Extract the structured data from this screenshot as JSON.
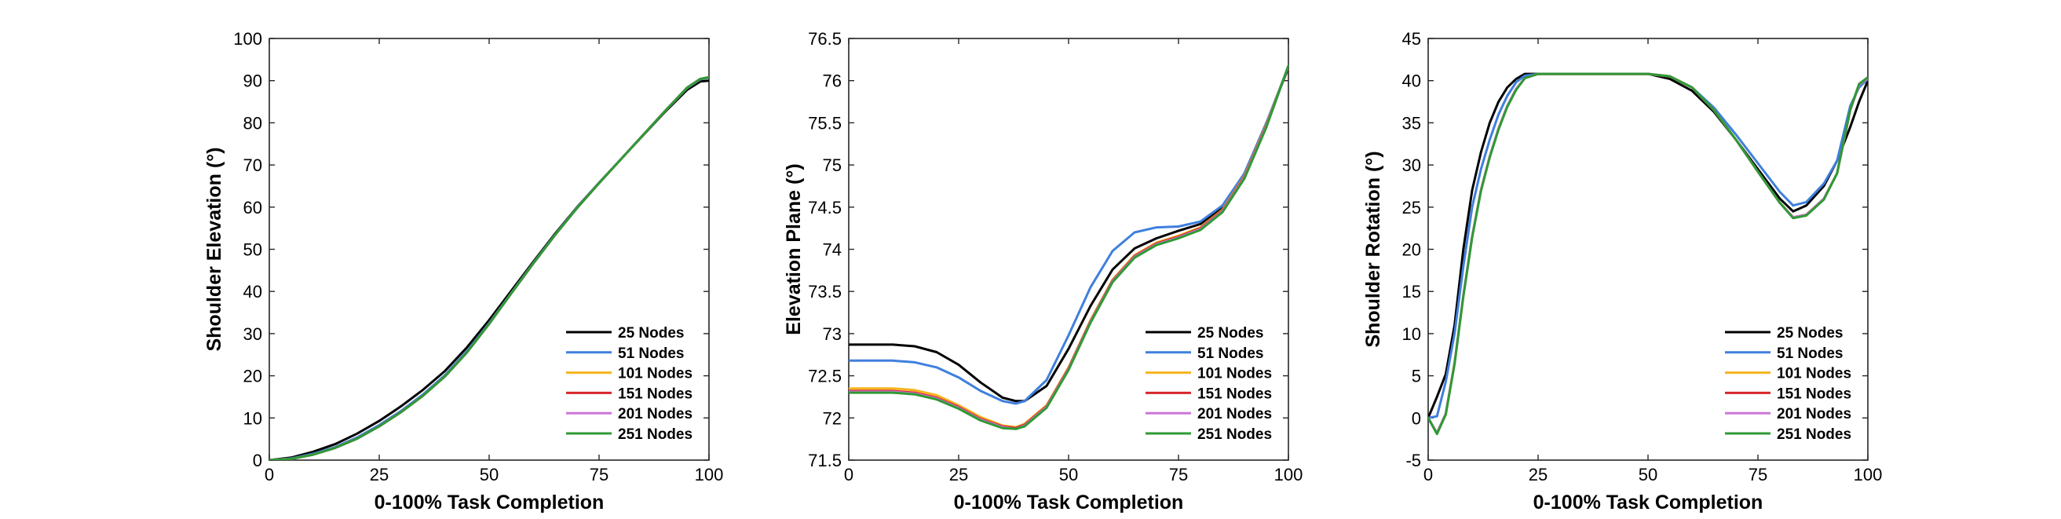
{
  "chart_data": [
    {
      "type": "line",
      "xlabel": "0-100% Task Completion",
      "ylabel": "Shoulder Elevation (°)",
      "xlim": [
        0,
        100
      ],
      "ylim": [
        0,
        100
      ],
      "xticks": [
        0,
        25,
        50,
        75,
        100
      ],
      "yticks": [
        0,
        10,
        20,
        30,
        40,
        50,
        60,
        70,
        80,
        90,
        100
      ],
      "grid": false,
      "legend_position": "bottom-right",
      "x": [
        0,
        5,
        10,
        15,
        20,
        25,
        30,
        35,
        40,
        45,
        50,
        55,
        60,
        65,
        70,
        75,
        80,
        85,
        90,
        95,
        98,
        100
      ],
      "series": [
        {
          "name": "25 Nodes",
          "color": "#000000",
          "values": [
            0,
            0.6,
            2,
            3.8,
            6.3,
            9.3,
            12.8,
            16.7,
            21.2,
            26.8,
            33.2,
            40.1,
            47,
            53.7,
            60,
            65.8,
            71.4,
            77,
            82.6,
            87.8,
            89.8,
            90
          ]
        },
        {
          "name": "51 Nodes",
          "color": "#3f7fdd",
          "values": [
            0,
            0.4,
            1.5,
            3.1,
            5.4,
            8.3,
            11.7,
            15.6,
            20.2,
            25.9,
            32.5,
            39.6,
            46.7,
            53.5,
            59.9,
            65.8,
            71.4,
            77.1,
            82.8,
            88.2,
            90.3,
            90.7
          ]
        },
        {
          "name": "101 Nodes",
          "color": "#f5b31c",
          "values": [
            0,
            0.3,
            1.3,
            2.9,
            5.1,
            8,
            11.4,
            15.3,
            19.9,
            25.6,
            32.3,
            39.5,
            46.6,
            53.4,
            59.8,
            65.7,
            71.4,
            77.1,
            82.8,
            88.3,
            90.4,
            90.8
          ]
        },
        {
          "name": "151 Nodes",
          "color": "#d6262a",
          "values": [
            0,
            0.3,
            1.3,
            2.9,
            5.1,
            8,
            11.4,
            15.3,
            19.9,
            25.6,
            32.3,
            39.5,
            46.6,
            53.4,
            59.8,
            65.7,
            71.4,
            77.1,
            82.8,
            88.3,
            90.4,
            90.8
          ]
        },
        {
          "name": "201 Nodes",
          "color": "#cc77d8",
          "values": [
            0,
            0.3,
            1.3,
            2.9,
            5.1,
            8,
            11.4,
            15.3,
            19.9,
            25.6,
            32.3,
            39.5,
            46.6,
            53.4,
            59.8,
            65.7,
            71.4,
            77.1,
            82.8,
            88.3,
            90.4,
            90.8
          ]
        },
        {
          "name": "251 Nodes",
          "color": "#2e9a35",
          "values": [
            0,
            0.3,
            1.3,
            2.9,
            5.1,
            8,
            11.4,
            15.3,
            19.9,
            25.6,
            32.3,
            39.5,
            46.6,
            53.4,
            59.8,
            65.7,
            71.4,
            77.1,
            82.8,
            88.3,
            90.4,
            90.8
          ]
        }
      ]
    },
    {
      "type": "line",
      "xlabel": "0-100% Task Completion",
      "ylabel": "Elevation Plane (°)",
      "xlim": [
        0,
        100
      ],
      "ylim": [
        71.5,
        76.5
      ],
      "xticks": [
        0,
        25,
        50,
        75,
        100
      ],
      "yticks": [
        71.5,
        72,
        72.5,
        73,
        73.5,
        74,
        74.5,
        75,
        75.5,
        76,
        76.5
      ],
      "grid": false,
      "legend_position": "bottom-right",
      "x": [
        0,
        5,
        10,
        15,
        20,
        25,
        30,
        35,
        38,
        40,
        45,
        50,
        55,
        60,
        65,
        70,
        75,
        80,
        85,
        90,
        95,
        100
      ],
      "series": [
        {
          "name": "25 Nodes",
          "color": "#000000",
          "values": [
            72.87,
            72.87,
            72.87,
            72.85,
            72.78,
            72.63,
            72.42,
            72.24,
            72.2,
            72.2,
            72.38,
            72.82,
            73.33,
            73.76,
            74.01,
            74.13,
            74.22,
            74.3,
            74.5,
            74.9,
            75.5,
            76.15
          ]
        },
        {
          "name": "51 Nodes",
          "color": "#3f7fdd",
          "values": [
            72.68,
            72.68,
            72.68,
            72.66,
            72.6,
            72.48,
            72.32,
            72.2,
            72.17,
            72.2,
            72.45,
            72.98,
            73.55,
            73.98,
            74.2,
            74.26,
            74.27,
            74.33,
            74.52,
            74.9,
            75.5,
            76.17
          ]
        },
        {
          "name": "101 Nodes",
          "color": "#f5b31c",
          "values": [
            72.35,
            72.35,
            72.35,
            72.33,
            72.27,
            72.15,
            72.01,
            71.91,
            71.89,
            71.93,
            72.15,
            72.6,
            73.16,
            73.64,
            73.93,
            74.08,
            74.16,
            74.26,
            74.47,
            74.87,
            75.48,
            76.17
          ]
        },
        {
          "name": "151 Nodes",
          "color": "#d6262a",
          "values": [
            72.32,
            72.32,
            72.32,
            72.3,
            72.24,
            72.13,
            71.99,
            71.9,
            71.88,
            71.92,
            72.14,
            72.59,
            73.15,
            73.63,
            73.92,
            74.07,
            74.15,
            74.25,
            74.46,
            74.86,
            75.47,
            76.17
          ]
        },
        {
          "name": "201 Nodes",
          "color": "#cc77d8",
          "values": [
            72.31,
            72.31,
            72.31,
            72.29,
            72.23,
            72.12,
            71.98,
            71.89,
            71.87,
            71.91,
            72.13,
            72.58,
            73.14,
            73.62,
            73.91,
            74.06,
            74.14,
            74.24,
            74.45,
            74.85,
            75.46,
            76.17
          ]
        },
        {
          "name": "251 Nodes",
          "color": "#2e9a35",
          "values": [
            72.3,
            72.3,
            72.3,
            72.28,
            72.22,
            72.11,
            71.97,
            71.88,
            71.87,
            71.9,
            72.12,
            72.57,
            73.13,
            73.61,
            73.9,
            74.05,
            74.13,
            74.23,
            74.44,
            74.84,
            75.45,
            76.18
          ]
        }
      ]
    },
    {
      "type": "line",
      "xlabel": "0-100% Task Completion",
      "ylabel": "Shoulder Rotation (°)",
      "xlim": [
        0,
        100
      ],
      "ylim": [
        -5,
        45
      ],
      "xticks": [
        0,
        25,
        50,
        75,
        100
      ],
      "yticks": [
        -5,
        0,
        5,
        10,
        15,
        20,
        25,
        30,
        35,
        40,
        45
      ],
      "grid": false,
      "legend_position": "bottom-right",
      "x": [
        0,
        2,
        4,
        6,
        8,
        10,
        12,
        14,
        16,
        18,
        20,
        22,
        25,
        30,
        40,
        50,
        55,
        60,
        65,
        70,
        75,
        80,
        83,
        86,
        90,
        93,
        96,
        98,
        100
      ],
      "series": [
        {
          "name": "25 Nodes",
          "color": "#000000",
          "values": [
            0,
            2.5,
            5.2,
            11,
            20,
            27,
            31.5,
            35,
            37.5,
            39.2,
            40.2,
            40.8,
            40.8,
            40.8,
            40.8,
            40.8,
            40.2,
            38.8,
            36.3,
            33,
            29.5,
            26,
            24.5,
            25.2,
            27.5,
            30.5,
            34.5,
            37.5,
            40
          ]
        },
        {
          "name": "51 Nodes",
          "color": "#3f7fdd",
          "values": [
            0,
            0.2,
            4.3,
            10,
            18,
            25,
            29.5,
            33,
            36,
            38.2,
            39.8,
            40.6,
            40.8,
            40.8,
            40.8,
            40.8,
            40.5,
            39.2,
            36.8,
            33.6,
            30.2,
            26.8,
            25.2,
            25.6,
            27.8,
            30.5,
            37,
            39.2,
            40.2
          ]
        },
        {
          "name": "101 Nodes",
          "color": "#f5b31c",
          "values": [
            0,
            -1.8,
            0.5,
            6.5,
            14.5,
            21.5,
            27,
            31,
            34.3,
            37,
            39,
            40.3,
            40.8,
            40.8,
            40.8,
            40.8,
            40.5,
            39.2,
            36.5,
            33,
            29.2,
            25.5,
            23.8,
            24.1,
            26,
            29,
            36.5,
            39.5,
            40.3
          ]
        },
        {
          "name": "151 Nodes",
          "color": "#d6262a",
          "values": [
            0,
            -1.8,
            0.5,
            6.5,
            14.5,
            21.5,
            27,
            31,
            34.3,
            37,
            39,
            40.3,
            40.8,
            40.8,
            40.8,
            40.8,
            40.5,
            39.2,
            36.5,
            33,
            29.2,
            25.5,
            23.8,
            24.1,
            26,
            29,
            36.5,
            39.5,
            40.3
          ]
        },
        {
          "name": "201 Nodes",
          "color": "#cc77d8",
          "values": [
            0,
            -1.8,
            0.5,
            6.5,
            14.5,
            21.5,
            27,
            31,
            34.3,
            37,
            39,
            40.3,
            40.8,
            40.8,
            40.8,
            40.8,
            40.5,
            39.2,
            36.5,
            33,
            29.2,
            25.5,
            23.8,
            24.1,
            26,
            29,
            36.5,
            39.5,
            40.3
          ]
        },
        {
          "name": "251 Nodes",
          "color": "#2e9a35",
          "values": [
            0,
            -1.9,
            0.4,
            6.4,
            14.4,
            21.4,
            26.9,
            30.9,
            34.2,
            36.9,
            38.9,
            40.3,
            40.8,
            40.8,
            40.8,
            40.8,
            40.5,
            39.2,
            36.5,
            33,
            29.2,
            25.5,
            23.7,
            24,
            25.9,
            29,
            36.6,
            39.6,
            40.4
          ]
        }
      ]
    }
  ]
}
